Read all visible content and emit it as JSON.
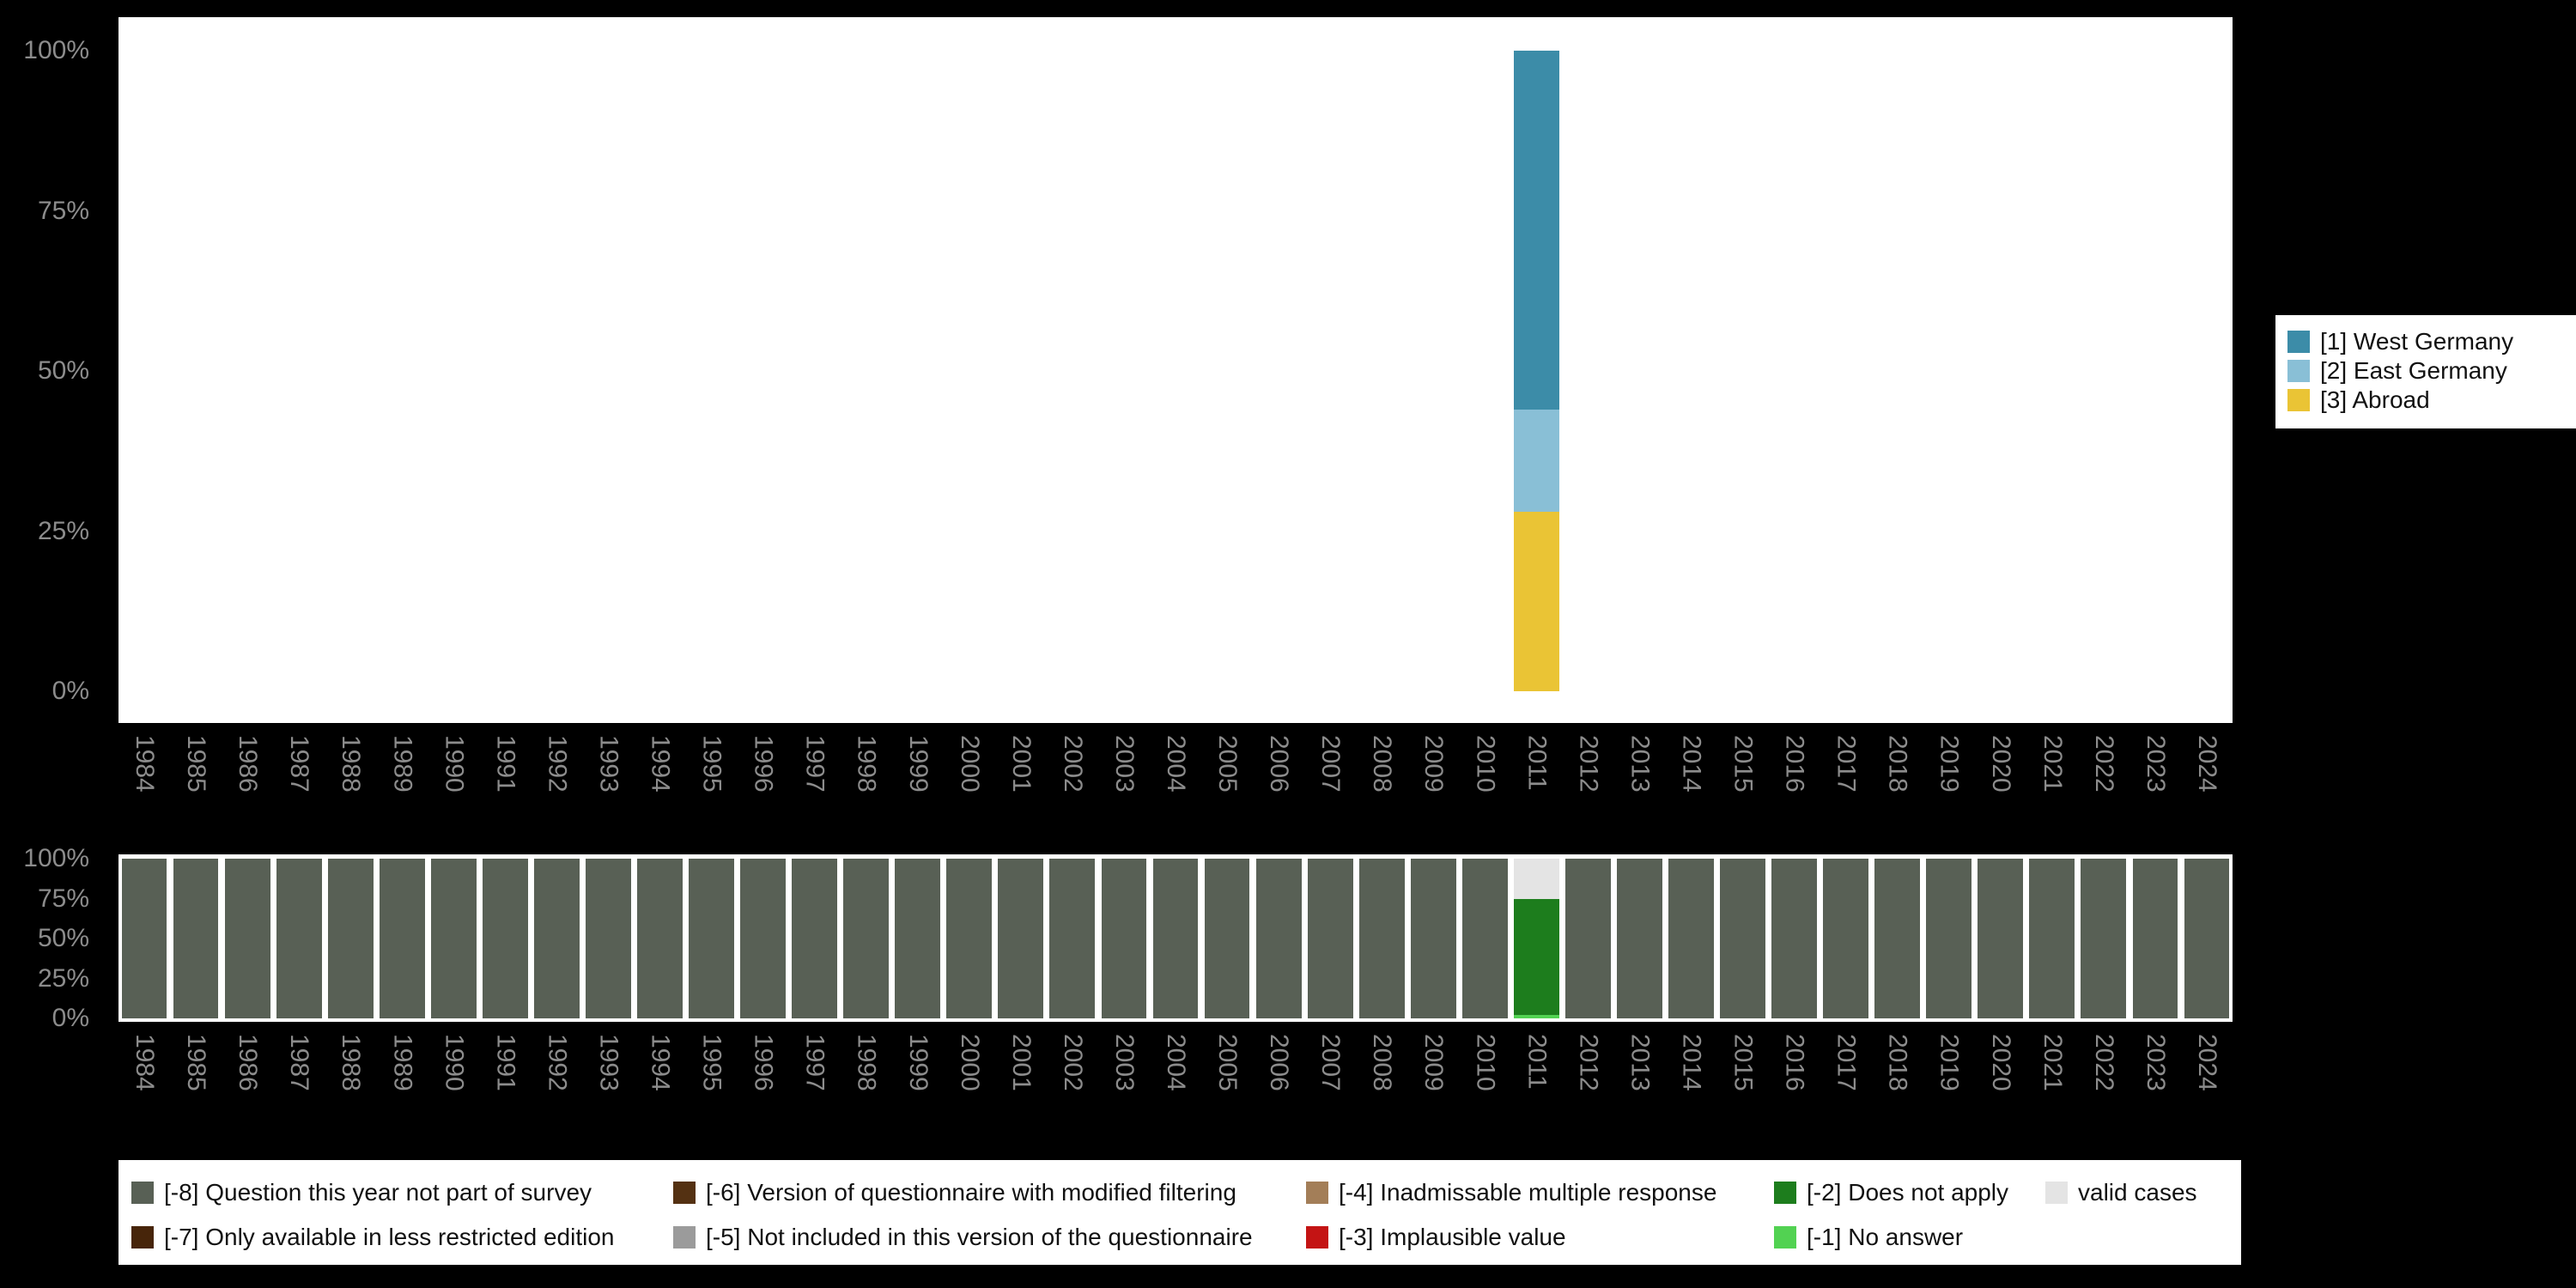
{
  "page": {
    "background": "#000000"
  },
  "chart_data": [
    {
      "name": "value-distribution-by-year",
      "type": "bar",
      "subtype": "stacked-percent",
      "title": "",
      "xlabel": "",
      "ylabel": "",
      "ylim": [
        0,
        100
      ],
      "grid": false,
      "legend_position": "right",
      "categories": [
        "1984",
        "1985",
        "1986",
        "1987",
        "1988",
        "1989",
        "1990",
        "1991",
        "1992",
        "1993",
        "1994",
        "1995",
        "1996",
        "1997",
        "1998",
        "1999",
        "2000",
        "2001",
        "2002",
        "2003",
        "2004",
        "2005",
        "2006",
        "2007",
        "2008",
        "2009",
        "2010",
        "2011",
        "2012",
        "2013",
        "2014",
        "2015",
        "2016",
        "2017",
        "2018",
        "2019",
        "2020",
        "2021",
        "2022",
        "2023",
        "2024"
      ],
      "y_ticks": [
        {
          "value": 0,
          "label": "0%"
        },
        {
          "value": 25,
          "label": "25%"
        },
        {
          "value": 50,
          "label": "50%"
        },
        {
          "value": 75,
          "label": "75%"
        },
        {
          "value": 100,
          "label": "100%"
        }
      ],
      "bars": {
        "2011": [
          {
            "label": "[3] Abroad",
            "color": "#eac435",
            "value": 28
          },
          {
            "label": "[2] East Germany",
            "color": "#89bfd6",
            "value": 16
          },
          {
            "label": "[1] West Germany",
            "color": "#3c8ca8",
            "value": 56
          }
        ]
      },
      "legend": [
        {
          "label": "[1] West Germany",
          "color": "#3c8ca8"
        },
        {
          "label": "[2] East Germany",
          "color": "#89bfd6"
        },
        {
          "label": "[3] Abroad",
          "color": "#eac435"
        }
      ]
    },
    {
      "name": "missing-values-by-year",
      "type": "bar",
      "subtype": "stacked-percent",
      "title": "",
      "xlabel": "",
      "ylabel": "",
      "ylim": [
        0,
        100
      ],
      "grid": false,
      "legend_position": "bottom",
      "categories": [
        "1984",
        "1985",
        "1986",
        "1987",
        "1988",
        "1989",
        "1990",
        "1991",
        "1992",
        "1993",
        "1994",
        "1995",
        "1996",
        "1997",
        "1998",
        "1999",
        "2000",
        "2001",
        "2002",
        "2003",
        "2004",
        "2005",
        "2006",
        "2007",
        "2008",
        "2009",
        "2010",
        "2011",
        "2012",
        "2013",
        "2014",
        "2015",
        "2016",
        "2017",
        "2018",
        "2019",
        "2020",
        "2021",
        "2022",
        "2023",
        "2024"
      ],
      "y_ticks": [
        {
          "value": 0,
          "label": "0%"
        },
        {
          "value": 25,
          "label": "25%"
        },
        {
          "value": 50,
          "label": "50%"
        },
        {
          "value": 75,
          "label": "75%"
        },
        {
          "value": 100,
          "label": "100%"
        }
      ],
      "default_segments": [
        {
          "label": "[-8] Question this year not part of survey",
          "color": "#586055",
          "value": 100
        }
      ],
      "bars": {
        "2011": [
          {
            "label": "[-1] No answer",
            "color": "#52d252",
            "value": 2
          },
          {
            "label": "[-2] Does not apply",
            "color": "#1d7d1d",
            "value": 73
          },
          {
            "label": "valid cases",
            "color": "#e4e4e4",
            "value": 25
          }
        ]
      },
      "legend_rows": [
        [
          {
            "label": "[-8] Question this year not part of survey",
            "color": "#586055"
          },
          {
            "label": "[-6] Version of questionnaire with modified filtering",
            "color": "#543112"
          },
          {
            "label": "[-4] Inadmissable multiple response",
            "color": "#a37e58"
          },
          {
            "label": "[-2] Does not apply",
            "color": "#1d7d1d"
          },
          {
            "label": "valid cases",
            "color": "#e4e4e4"
          }
        ],
        [
          {
            "label": "[-7] Only available in less restricted edition",
            "color": "#47250a"
          },
          {
            "label": "[-5] Not included in this version of the questionnaire",
            "color": "#9b9b9b"
          },
          {
            "label": "[-3] Implausible value",
            "color": "#c41414"
          },
          {
            "label": "[-1] No answer",
            "color": "#52d252"
          }
        ]
      ]
    }
  ]
}
